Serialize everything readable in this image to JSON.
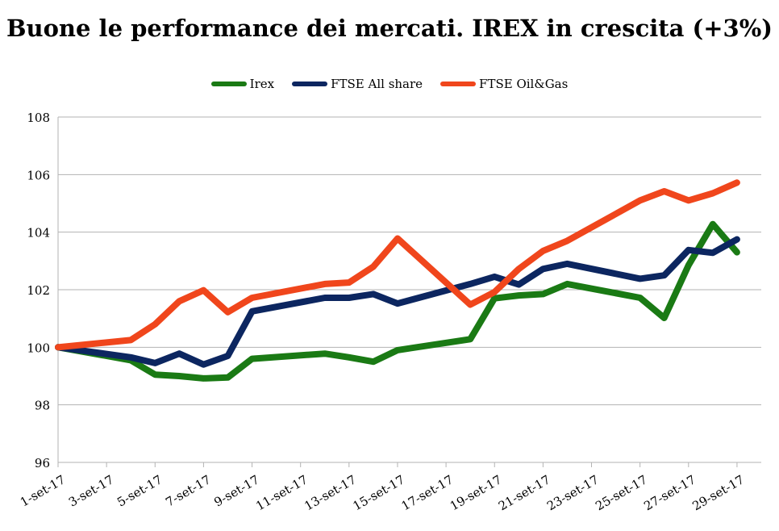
{
  "chart_data": {
    "type": "line",
    "title": "Buone le performance dei mercati. IREX in crescita (+3%)",
    "xlabel": "",
    "ylabel": "",
    "ylim": [
      96,
      108
    ],
    "yticks": [
      96,
      98,
      100,
      102,
      104,
      106,
      108
    ],
    "grid": true,
    "legend_position": "top",
    "x": [
      "1-set-17",
      "4-set-17",
      "5-set-17",
      "6-set-17",
      "7-set-17",
      "8-set-17",
      "9-set-17",
      "12-set-17",
      "13-set-17",
      "14-set-17",
      "15-set-17",
      "18-set-17",
      "19-set-17",
      "20-set-17",
      "21-set-17",
      "22-set-17",
      "25-set-17",
      "26-set-17",
      "27-set-17",
      "28-set-17",
      "29-set-17"
    ],
    "x_index": [
      0,
      3,
      4,
      5,
      6,
      7,
      8,
      11,
      12,
      13,
      14,
      17,
      18,
      19,
      20,
      21,
      24,
      25,
      26,
      27,
      28
    ],
    "x_domain": [
      0,
      29
    ],
    "x_ticks": [
      "1-set-17",
      "3-set-17",
      "5-set-17",
      "7-set-17",
      "9-set-17",
      "11-set-17",
      "13-set-17",
      "15-set-17",
      "17-set-17",
      "19-set-17",
      "21-set-17",
      "23-set-17",
      "25-set-17",
      "27-set-17",
      "29-set-17"
    ],
    "series": [
      {
        "name": "Irex",
        "color": "#1a7a14",
        "values": [
          100,
          99.55,
          99.05,
          99.0,
          98.92,
          98.95,
          99.6,
          99.78,
          99.65,
          99.5,
          99.9,
          100.28,
          101.7,
          101.8,
          101.85,
          102.2,
          101.72,
          101.02,
          102.85,
          104.28,
          103.3
        ]
      },
      {
        "name": "FTSE All share",
        "color": "#0c2660",
        "values": [
          100,
          99.65,
          99.45,
          99.78,
          99.4,
          99.7,
          101.25,
          101.72,
          101.72,
          101.85,
          101.52,
          102.2,
          102.45,
          102.18,
          102.72,
          102.9,
          102.38,
          102.5,
          103.38,
          103.28,
          103.75
        ]
      },
      {
        "name": "FTSE Oil&Gas",
        "color": "#f0461c",
        "values": [
          100,
          100.25,
          100.8,
          101.6,
          101.98,
          101.22,
          101.72,
          102.2,
          102.25,
          102.8,
          103.78,
          101.48,
          101.92,
          102.72,
          103.35,
          103.7,
          105.1,
          105.42,
          105.1,
          105.35,
          105.72
        ]
      }
    ]
  }
}
